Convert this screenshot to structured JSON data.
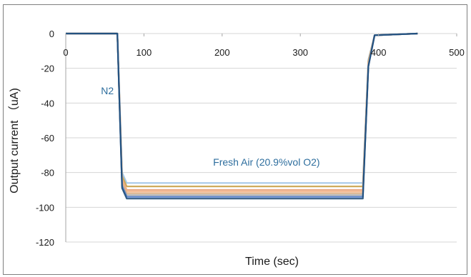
{
  "chart_data": {
    "type": "line",
    "title": "",
    "xlabel": "Time (sec)",
    "ylabel": "Output current （uA)",
    "xlim": [
      0,
      500
    ],
    "ylim": [
      -120,
      0
    ],
    "xticks": [
      0,
      100,
      200,
      300,
      400,
      500
    ],
    "yticks": [
      0,
      -20,
      -40,
      -60,
      -80,
      -100,
      -120
    ],
    "grid": {
      "horizontal": true,
      "vertical": false
    },
    "legend": "none",
    "annotations": [
      {
        "text": "N2",
        "x": 45,
        "y": -35
      },
      {
        "text": "Fresh Air (20.9%vol O2)",
        "x": 225,
        "y": -76
      }
    ],
    "series": [
      {
        "color": "#9dc3e6",
        "values": [
          [
            0,
            0
          ],
          [
            66,
            0
          ],
          [
            72,
            -80
          ],
          [
            78,
            -86
          ],
          [
            380,
            -86
          ],
          [
            387,
            -15
          ],
          [
            395,
            -1
          ],
          [
            450,
            0
          ]
        ]
      },
      {
        "color": "#c9a24a",
        "values": [
          [
            0,
            0
          ],
          [
            66,
            0
          ],
          [
            72,
            -82
          ],
          [
            78,
            -88
          ],
          [
            380,
            -88
          ],
          [
            387,
            -16
          ],
          [
            395,
            -1
          ],
          [
            450,
            0
          ]
        ]
      },
      {
        "color": "#e8a27a",
        "values": [
          [
            0,
            0
          ],
          [
            66,
            0
          ],
          [
            72,
            -84
          ],
          [
            78,
            -90
          ],
          [
            380,
            -90
          ],
          [
            387,
            -17
          ],
          [
            395,
            -1
          ],
          [
            450,
            0
          ]
        ]
      },
      {
        "color": "#f4b183",
        "values": [
          [
            0,
            0
          ],
          [
            66,
            0
          ],
          [
            72,
            -85
          ],
          [
            78,
            -91
          ],
          [
            380,
            -91
          ],
          [
            387,
            -17
          ],
          [
            395,
            -1
          ],
          [
            450,
            0
          ]
        ]
      },
      {
        "color": "#d9b38c",
        "values": [
          [
            0,
            0
          ],
          [
            66,
            0
          ],
          [
            72,
            -86
          ],
          [
            78,
            -92
          ],
          [
            380,
            -92
          ],
          [
            387,
            -18
          ],
          [
            395,
            -1
          ],
          [
            450,
            0
          ]
        ]
      },
      {
        "color": "#a9a9a9",
        "values": [
          [
            0,
            0
          ],
          [
            66,
            0
          ],
          [
            72,
            -87
          ],
          [
            78,
            -93
          ],
          [
            380,
            -93
          ],
          [
            387,
            -18
          ],
          [
            395,
            -1
          ],
          [
            450,
            0
          ]
        ]
      },
      {
        "color": "#4472c4",
        "values": [
          [
            0,
            0
          ],
          [
            66,
            0
          ],
          [
            72,
            -88
          ],
          [
            78,
            -94
          ],
          [
            380,
            -94
          ],
          [
            387,
            -19
          ],
          [
            395,
            -1
          ],
          [
            450,
            0
          ]
        ]
      },
      {
        "color": "#1f4e79",
        "values": [
          [
            0,
            0
          ],
          [
            66,
            0
          ],
          [
            72,
            -89
          ],
          [
            78,
            -95
          ],
          [
            380,
            -95
          ],
          [
            387,
            -19
          ],
          [
            395,
            -1
          ],
          [
            450,
            0
          ]
        ]
      }
    ]
  }
}
